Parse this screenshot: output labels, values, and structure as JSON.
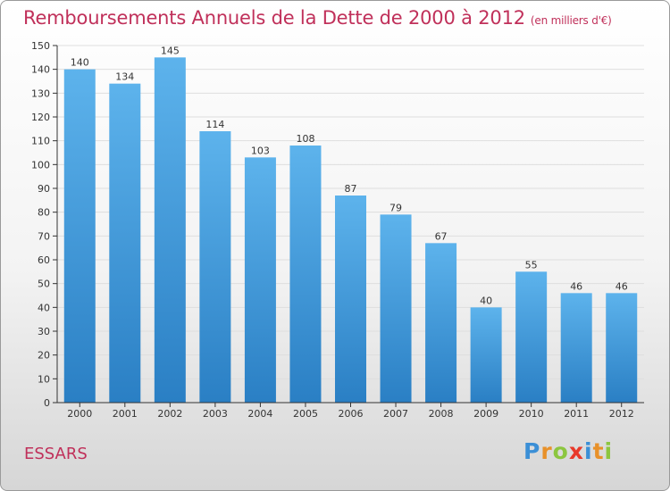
{
  "title": "Remboursements Annuels de la Dette de 2000 à 2012",
  "subtitle": "(en milliers d'€)",
  "commune": "ESSARS",
  "logo": {
    "text": "Proxiti"
  },
  "colors": {
    "title": "#c0305a",
    "bar_top": "#5db3ec",
    "bar_bottom": "#2a7fc4"
  },
  "chart_data": {
    "type": "bar",
    "categories": [
      "2000",
      "2001",
      "2002",
      "2003",
      "2004",
      "2005",
      "2006",
      "2007",
      "2008",
      "2009",
      "2010",
      "2011",
      "2012"
    ],
    "values": [
      140,
      134,
      145,
      114,
      103,
      108,
      87,
      79,
      67,
      40,
      55,
      46,
      46
    ],
    "ylim": [
      0,
      150
    ],
    "yticks": [
      0,
      10,
      20,
      30,
      40,
      50,
      60,
      70,
      80,
      90,
      100,
      110,
      120,
      130,
      140,
      150
    ],
    "grid": "horizontal"
  }
}
